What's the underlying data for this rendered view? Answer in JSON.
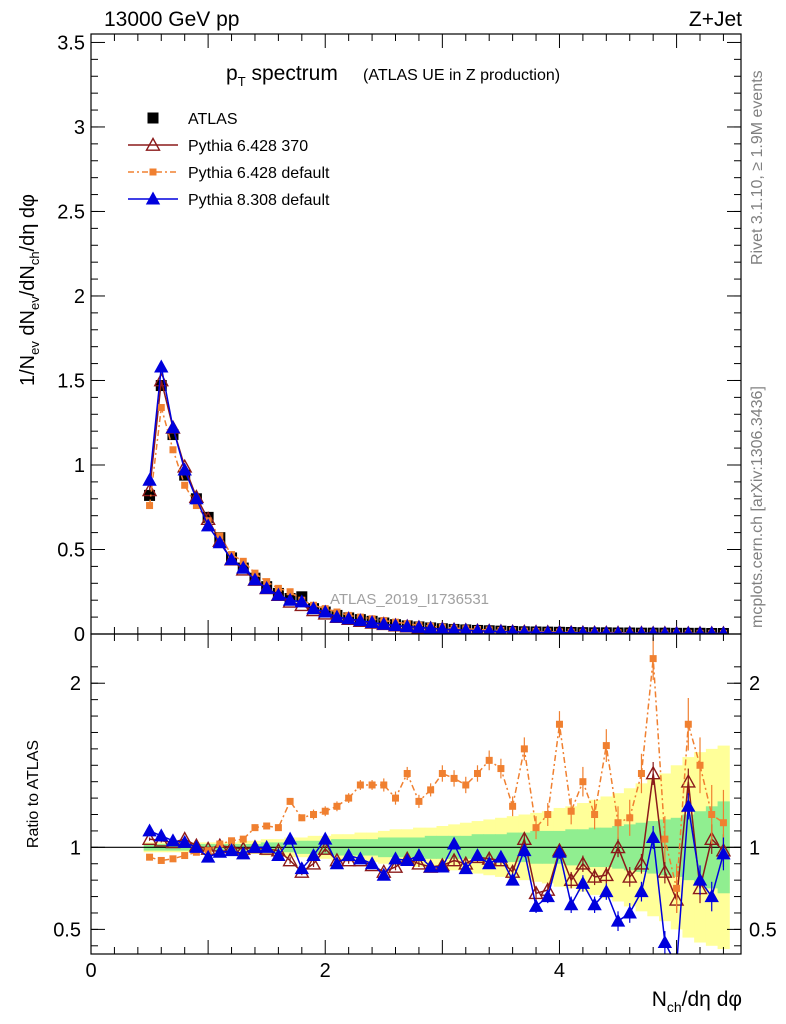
{
  "header": {
    "beam_label": "13000 GeV pp",
    "process_label": "Z+Jet",
    "rivet_label": "Rivet 3.1.10, ≥ 1.9M events",
    "mcplots_label": "mcplots.cern.ch [arXiv:1306.3436]",
    "analysis_id": "ATLAS_2019_I1736531"
  },
  "colors": {
    "atlas": "#000000",
    "pythia6_370": "#8b1a1a",
    "pythia6_default": "#f08030",
    "pythia8_default": "#0000dd",
    "band_inner": "#90ee90",
    "band_outer": "#ffff99"
  },
  "chart_data": [
    {
      "type": "scatter",
      "title_main": "p",
      "title_sub": "T",
      "title_rest": " spectrum",
      "title_note": "(ATLAS UE in Z production)",
      "ylabel": "1/N_ev dN_ev/dN_ch/dη dφ",
      "xlim": [
        0,
        5.55
      ],
      "ylim": [
        0,
        3.55
      ],
      "yticks": [
        "0",
        "0.5",
        "1",
        "1.5",
        "2",
        "2.5",
        "3",
        "3.5"
      ],
      "ytick_values": [
        0,
        0.5,
        1,
        1.5,
        2,
        2.5,
        3,
        3.5
      ],
      "legend_position": "top-left",
      "x": [
        0.5,
        0.6,
        0.7,
        0.8,
        0.9,
        1.0,
        1.1,
        1.2,
        1.3,
        1.4,
        1.5,
        1.6,
        1.7,
        1.8,
        1.9,
        2.0,
        2.1,
        2.2,
        2.3,
        2.4,
        2.5,
        2.6,
        2.7,
        2.8,
        2.9,
        3.0,
        3.1,
        3.2,
        3.3,
        3.4,
        3.5,
        3.6,
        3.7,
        3.8,
        3.9,
        4.0,
        4.1,
        4.2,
        4.3,
        4.4,
        4.5,
        4.6,
        4.7,
        4.8,
        4.9,
        5.0,
        5.1,
        5.2,
        5.3,
        5.4
      ],
      "series": [
        {
          "name": "ATLAS",
          "marker": "square",
          "values": [
            0.82,
            1.47,
            1.18,
            0.94,
            0.8,
            0.69,
            0.57,
            0.45,
            0.39,
            0.33,
            0.28,
            0.24,
            0.21,
            0.22,
            0.15,
            0.13,
            0.11,
            0.095,
            0.085,
            0.075,
            0.065,
            0.055,
            0.048,
            0.042,
            0.036,
            0.031,
            0.027,
            0.024,
            0.021,
            0.019,
            0.017,
            0.015,
            0.013,
            0.012,
            0.011,
            0.01,
            0.009,
            0.008,
            0.007,
            0.007,
            0.006,
            0.006,
            0.005,
            0.005,
            0.005,
            0.004,
            0.004,
            0.004,
            0.003,
            0.003
          ]
        },
        {
          "name": "Pythia 6.428 370",
          "marker": "open-triangle",
          "values": [
            0.85,
            1.5,
            1.22,
            0.99,
            0.81,
            0.68,
            0.55,
            0.44,
            0.38,
            0.32,
            0.27,
            0.23,
            0.19,
            0.17,
            0.14,
            0.12,
            0.1,
            0.088,
            0.076,
            0.066,
            0.058,
            0.05,
            0.044,
            0.038,
            0.033,
            0.029,
            0.025,
            0.022,
            0.019,
            0.017,
            0.015,
            0.013,
            0.012,
            0.011,
            0.01,
            0.009,
            0.008,
            0.007,
            0.0065,
            0.006,
            0.0055,
            0.005,
            0.0045,
            0.004,
            0.004,
            0.0035,
            0.003,
            0.003,
            0.003,
            0.003
          ]
        },
        {
          "name": "Pythia 6.428 default",
          "marker": "small-square",
          "values": [
            0.76,
            1.34,
            1.09,
            0.88,
            0.76,
            0.67,
            0.58,
            0.47,
            0.43,
            0.36,
            0.31,
            0.27,
            0.25,
            0.2,
            0.17,
            0.15,
            0.13,
            0.11,
            0.1,
            0.09,
            0.08,
            0.07,
            0.061,
            0.052,
            0.046,
            0.04,
            0.035,
            0.031,
            0.027,
            0.024,
            0.021,
            0.019,
            0.017,
            0.015,
            0.013,
            0.012,
            0.011,
            0.01,
            0.009,
            0.008,
            0.0075,
            0.007,
            0.0065,
            0.006,
            0.0055,
            0.005,
            0.0045,
            0.004,
            0.004,
            0.0035
          ]
        },
        {
          "name": "Pythia 8.308 default",
          "marker": "filled-triangle",
          "values": [
            0.91,
            1.58,
            1.22,
            0.97,
            0.8,
            0.64,
            0.54,
            0.44,
            0.39,
            0.32,
            0.27,
            0.23,
            0.2,
            0.19,
            0.15,
            0.13,
            0.1,
            0.09,
            0.079,
            0.068,
            0.058,
            0.05,
            0.044,
            0.039,
            0.033,
            0.028,
            0.025,
            0.022,
            0.019,
            0.017,
            0.015,
            0.013,
            0.011,
            0.01,
            0.009,
            0.008,
            0.007,
            0.0065,
            0.006,
            0.0055,
            0.005,
            0.0045,
            0.004,
            0.004,
            0.0035,
            0.003,
            0.003,
            0.003,
            0.003,
            0.003
          ]
        }
      ]
    },
    {
      "type": "scatter",
      "ylabel": "Ratio to ATLAS",
      "xlabel_main": "N",
      "xlabel_sub": "ch",
      "xlabel_rest": "/dη dφ",
      "xlim": [
        0,
        5.55
      ],
      "ylim": [
        0.35,
        2.3
      ],
      "xticks": [
        "0",
        "2",
        "4"
      ],
      "xtick_values": [
        0,
        2,
        4
      ],
      "yticks": [
        "0.5",
        "1",
        "2"
      ],
      "ytick_values": [
        0.5,
        1,
        2
      ],
      "reference_line": 1,
      "x": [
        0.5,
        0.6,
        0.7,
        0.8,
        0.9,
        1.0,
        1.1,
        1.2,
        1.3,
        1.4,
        1.5,
        1.6,
        1.7,
        1.8,
        1.9,
        2.0,
        2.1,
        2.2,
        2.3,
        2.4,
        2.5,
        2.6,
        2.7,
        2.8,
        2.9,
        3.0,
        3.1,
        3.2,
        3.3,
        3.4,
        3.5,
        3.6,
        3.7,
        3.8,
        3.9,
        4.0,
        4.1,
        4.2,
        4.3,
        4.4,
        4.5,
        4.6,
        4.7,
        4.8,
        4.9,
        5.0,
        5.1,
        5.2,
        5.3,
        5.4
      ],
      "band_inner_halfwidth": [
        0.02,
        0.02,
        0.02,
        0.02,
        0.02,
        0.02,
        0.02,
        0.02,
        0.02,
        0.02,
        0.03,
        0.03,
        0.03,
        0.04,
        0.04,
        0.04,
        0.05,
        0.05,
        0.05,
        0.05,
        0.06,
        0.06,
        0.06,
        0.06,
        0.07,
        0.07,
        0.07,
        0.07,
        0.08,
        0.08,
        0.08,
        0.09,
        0.09,
        0.1,
        0.1,
        0.1,
        0.11,
        0.11,
        0.12,
        0.12,
        0.13,
        0.14,
        0.15,
        0.16,
        0.17,
        0.18,
        0.2,
        0.22,
        0.25,
        0.28
      ],
      "band_outer_halfwidth": [
        0.03,
        0.03,
        0.03,
        0.03,
        0.03,
        0.03,
        0.03,
        0.03,
        0.04,
        0.04,
        0.05,
        0.05,
        0.06,
        0.06,
        0.07,
        0.07,
        0.08,
        0.08,
        0.09,
        0.09,
        0.1,
        0.11,
        0.11,
        0.12,
        0.12,
        0.13,
        0.14,
        0.15,
        0.16,
        0.17,
        0.18,
        0.19,
        0.2,
        0.21,
        0.22,
        0.24,
        0.25,
        0.27,
        0.29,
        0.31,
        0.33,
        0.36,
        0.39,
        0.42,
        0.45,
        0.5,
        0.55,
        0.58,
        0.6,
        0.62
      ],
      "series": [
        {
          "name": "Pythia 6.428 370",
          "values": [
            1.05,
            1.04,
            1.03,
            1.05,
            1.01,
            0.99,
            1.01,
            1.0,
            0.99,
            1.0,
            0.99,
            0.98,
            0.92,
            0.85,
            0.9,
            0.99,
            0.92,
            0.92,
            0.92,
            0.89,
            0.85,
            0.88,
            0.93,
            0.9,
            0.88,
            0.89,
            0.92,
            0.9,
            0.94,
            0.93,
            0.92,
            0.85,
            1.05,
            0.72,
            0.74,
            0.98,
            0.8,
            0.9,
            0.82,
            0.83,
            1.0,
            0.82,
            0.9,
            1.45,
            0.85,
            0.68,
            1.4,
            0.75,
            1.05,
            0.98
          ],
          "errors": [
            0.01,
            0.01,
            0.01,
            0.01,
            0.01,
            0.01,
            0.01,
            0.01,
            0.01,
            0.01,
            0.02,
            0.02,
            0.02,
            0.02,
            0.02,
            0.02,
            0.02,
            0.02,
            0.02,
            0.02,
            0.02,
            0.02,
            0.02,
            0.02,
            0.02,
            0.03,
            0.03,
            0.03,
            0.03,
            0.03,
            0.03,
            0.03,
            0.04,
            0.04,
            0.04,
            0.04,
            0.05,
            0.05,
            0.05,
            0.05,
            0.06,
            0.06,
            0.06,
            0.07,
            0.07,
            0.08,
            0.08,
            0.09,
            0.09,
            0.1
          ]
        },
        {
          "name": "Pythia 6.428 default",
          "values": [
            0.94,
            0.92,
            0.93,
            0.95,
            0.97,
            0.98,
            1.02,
            1.04,
            1.05,
            1.12,
            1.13,
            1.12,
            1.28,
            1.18,
            1.2,
            1.22,
            1.25,
            1.3,
            1.38,
            1.38,
            1.38,
            1.3,
            1.45,
            1.28,
            1.35,
            1.45,
            1.42,
            1.38,
            1.45,
            1.53,
            1.48,
            1.25,
            1.6,
            1.12,
            1.2,
            1.75,
            1.22,
            1.4,
            1.2,
            1.62,
            1.15,
            1.18,
            1.45,
            2.15,
            1.05,
            0.75,
            1.75,
            1.5,
            1.2,
            1.15
          ],
          "errors": [
            0.01,
            0.01,
            0.01,
            0.01,
            0.01,
            0.01,
            0.01,
            0.01,
            0.01,
            0.02,
            0.02,
            0.02,
            0.02,
            0.02,
            0.03,
            0.03,
            0.03,
            0.03,
            0.03,
            0.03,
            0.04,
            0.04,
            0.04,
            0.04,
            0.04,
            0.05,
            0.05,
            0.05,
            0.05,
            0.06,
            0.06,
            0.06,
            0.07,
            0.07,
            0.07,
            0.08,
            0.08,
            0.09,
            0.09,
            0.1,
            0.1,
            0.11,
            0.12,
            0.13,
            0.14,
            0.15,
            0.16,
            0.17,
            0.18,
            0.2
          ]
        },
        {
          "name": "Pythia 8.308 default",
          "values": [
            1.1,
            1.07,
            1.04,
            1.03,
            1.0,
            0.94,
            0.97,
            0.98,
            0.96,
            1.0,
            1.0,
            0.95,
            1.05,
            0.87,
            0.95,
            1.05,
            0.9,
            0.95,
            0.93,
            0.9,
            0.83,
            0.93,
            0.92,
            0.95,
            0.88,
            0.88,
            1.02,
            0.87,
            0.95,
            0.9,
            0.94,
            0.8,
            0.98,
            0.64,
            0.7,
            0.97,
            0.65,
            0.78,
            0.65,
            0.73,
            0.55,
            0.6,
            0.73,
            1.06,
            0.42,
            0.28,
            1.25,
            0.8,
            0.7,
            0.96
          ],
          "errors": [
            0.01,
            0.01,
            0.01,
            0.01,
            0.01,
            0.01,
            0.01,
            0.01,
            0.01,
            0.01,
            0.02,
            0.02,
            0.02,
            0.02,
            0.02,
            0.02,
            0.02,
            0.02,
            0.02,
            0.02,
            0.02,
            0.02,
            0.02,
            0.02,
            0.02,
            0.03,
            0.03,
            0.03,
            0.03,
            0.03,
            0.03,
            0.03,
            0.04,
            0.04,
            0.04,
            0.04,
            0.05,
            0.05,
            0.05,
            0.05,
            0.06,
            0.06,
            0.06,
            0.07,
            0.07,
            0.08,
            0.08,
            0.09,
            0.09,
            0.1
          ]
        }
      ]
    }
  ]
}
